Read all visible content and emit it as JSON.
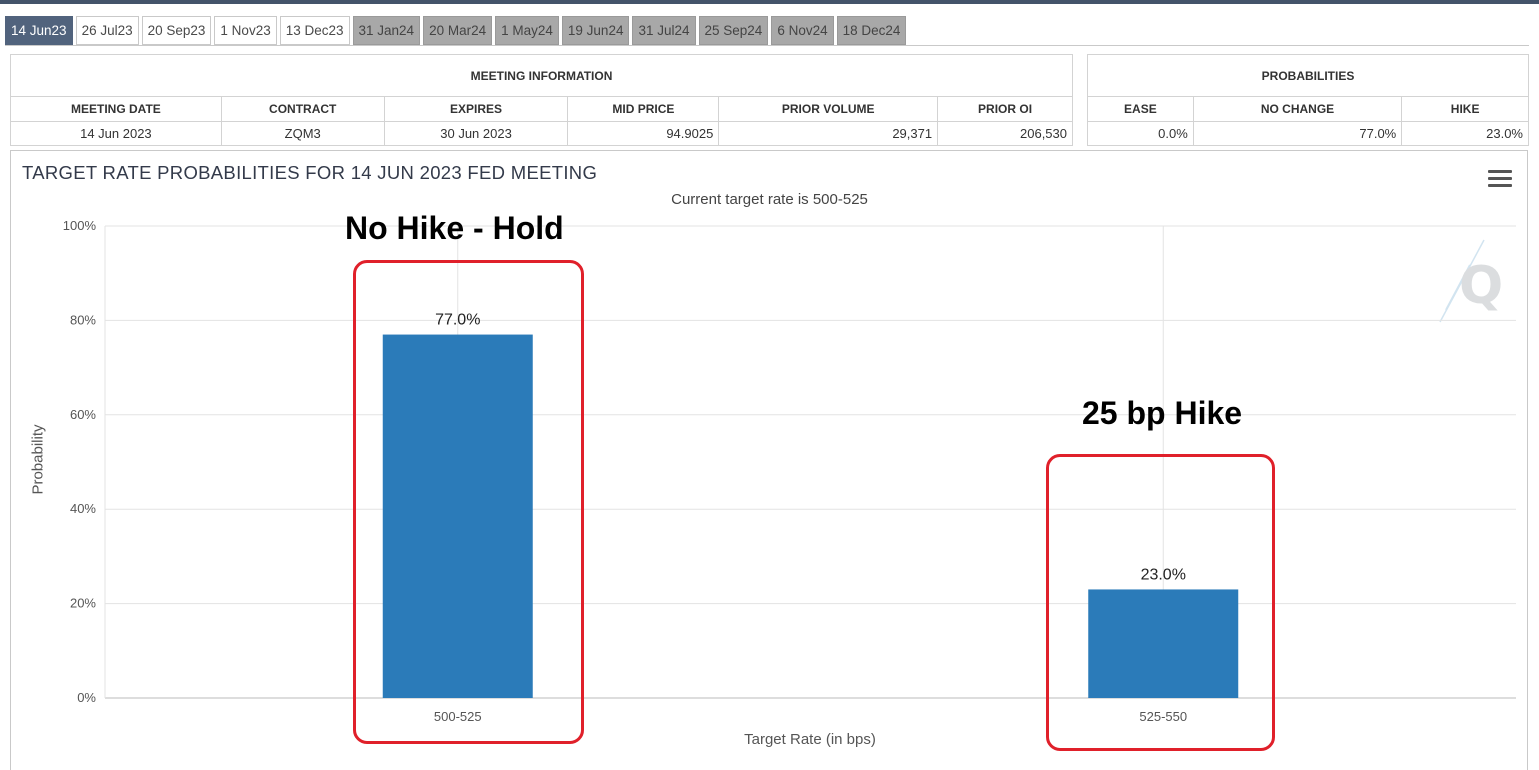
{
  "tabs": [
    {
      "label": "14 Jun23",
      "state": "active"
    },
    {
      "label": "26 Jul23",
      "state": "normal"
    },
    {
      "label": "20 Sep23",
      "state": "normal"
    },
    {
      "label": "1 Nov23",
      "state": "normal"
    },
    {
      "label": "13 Dec23",
      "state": "normal"
    },
    {
      "label": "31 Jan24",
      "state": "grey"
    },
    {
      "label": "20 Mar24",
      "state": "grey"
    },
    {
      "label": "1 May24",
      "state": "grey"
    },
    {
      "label": "19 Jun24",
      "state": "grey"
    },
    {
      "label": "31 Jul24",
      "state": "grey"
    },
    {
      "label": "25 Sep24",
      "state": "grey"
    },
    {
      "label": "6 Nov24",
      "state": "grey"
    },
    {
      "label": "18 Dec24",
      "state": "grey"
    }
  ],
  "meeting_info": {
    "heading": "MEETING INFORMATION",
    "columns": [
      "MEETING DATE",
      "CONTRACT",
      "EXPIRES",
      "MID PRICE",
      "PRIOR VOLUME",
      "PRIOR OI"
    ],
    "row": [
      "14 Jun 2023",
      "ZQM3",
      "30 Jun 2023",
      "94.9025",
      "29,371",
      "206,530"
    ]
  },
  "probabilities": {
    "heading": "PROBABILITIES",
    "columns": [
      "EASE",
      "NO CHANGE",
      "HIKE"
    ],
    "row": [
      "0.0%",
      "77.0%",
      "23.0%"
    ]
  },
  "chart_data": {
    "type": "bar",
    "title": "TARGET RATE PROBABILITIES FOR 14 JUN 2023 FED MEETING",
    "subtitle": "Current target rate is 500-525",
    "xlabel": "Target Rate (in bps)",
    "ylabel": "Probability",
    "categories": [
      "500-525",
      "525-550"
    ],
    "values": [
      77.0,
      23.0
    ],
    "data_labels": [
      "77.0%",
      "23.0%"
    ],
    "ylim": [
      0,
      100
    ],
    "yticks": [
      "0%",
      "20%",
      "40%",
      "60%",
      "80%",
      "100%"
    ],
    "grid": true,
    "bar_color": "#2b7bb9",
    "annotations": [
      "No Hike - Hold",
      "25 bp Hike"
    ],
    "annotation_box_color": "#e0202a"
  }
}
